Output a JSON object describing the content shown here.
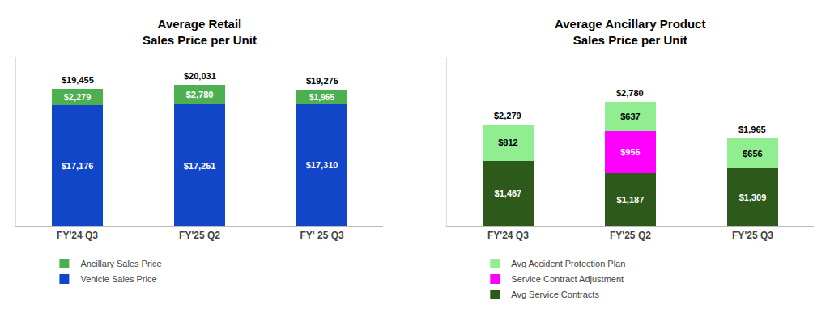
{
  "chart_data": [
    {
      "type": "bar",
      "stacked": true,
      "data_labels": true,
      "tick_labels": "x",
      "grid": false,
      "legend": "bottom",
      "title": "Average Retail\nSales Price per Unit",
      "categories": [
        "FY'24 Q3",
        "FY'25 Q2",
        "FY' 25 Q3"
      ],
      "ylim": [
        0,
        24000
      ],
      "series": [
        {
          "name": "Vehicle Sales Price",
          "color": "#1246C8",
          "values": [
            17176,
            17251,
            17310
          ],
          "value_labels": [
            "$17,176",
            "$17,251",
            "$17,310"
          ]
        },
        {
          "name": "Ancillary Sales Price",
          "color": "#4CAF50",
          "values": [
            2279,
            2780,
            1965
          ],
          "value_labels": [
            "$2,279",
            "$2,780",
            "$1,965"
          ]
        }
      ],
      "annotations": [
        {
          "category": "FY'24 Q3",
          "value": 19455,
          "text": "$19,455"
        },
        {
          "category": "FY'25 Q2",
          "value": 20031,
          "text": "$20,031"
        },
        {
          "category": "FY' 25 Q3",
          "value": 19275,
          "text": "$19,275"
        }
      ]
    },
    {
      "type": "bar",
      "stacked": true,
      "data_labels": true,
      "tick_labels": "x",
      "grid": false,
      "legend": "bottom",
      "title": "Average Ancillary Product\nSales Price per Unit",
      "categories": [
        "FY'24 Q3",
        "FY'25 Q2",
        "FY'25 Q3"
      ],
      "ylim": [
        0,
        3800
      ],
      "series": [
        {
          "name": "Avg Service Contracts",
          "color": "#2D5A1B",
          "values": [
            1467,
            1187,
            1309
          ],
          "value_labels": [
            "$1,467",
            "$1,187",
            "$1,309"
          ]
        },
        {
          "name": "Service Contract Adjustment",
          "color": "#FF00FF",
          "values": [
            0,
            956,
            0
          ],
          "value_labels": [
            null,
            "$956",
            null
          ]
        },
        {
          "name": "Avg Accident Protection Plan",
          "color": "#90EE90",
          "values": [
            812,
            637,
            656
          ],
          "value_labels": [
            "$812",
            "$637",
            "$656"
          ]
        }
      ],
      "annotations": [
        {
          "category": "FY'24 Q3",
          "value": 2279,
          "text": "$2,279"
        },
        {
          "category": "FY'25 Q2",
          "value": 2780,
          "text": "$2,780"
        },
        {
          "category": "FY'25 Q3",
          "value": 1965,
          "text": "$1,965"
        }
      ]
    }
  ]
}
